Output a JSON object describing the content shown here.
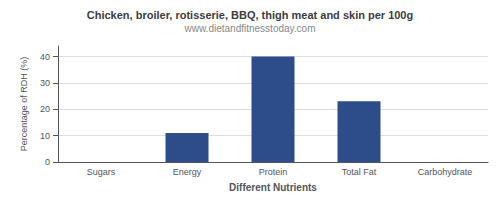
{
  "chart_data": {
    "type": "bar",
    "title": "Chicken, broiler, rotisserie, BBQ, thigh meat and skin per 100g",
    "subtitle": "www.dietandfitnesstoday.com",
    "categories": [
      "Sugars",
      "Energy",
      "Protein",
      "Total Fat",
      "Carbohydrate"
    ],
    "values": [
      0,
      11,
      40,
      23,
      0
    ],
    "color": "#2d4d8a",
    "xlabel": "Different Nutrients",
    "ylabel": "Percentage of RDH (%)",
    "ylim": [
      0,
      44
    ],
    "yticks": [
      0,
      10,
      20,
      30,
      40
    ],
    "grid": true
  }
}
